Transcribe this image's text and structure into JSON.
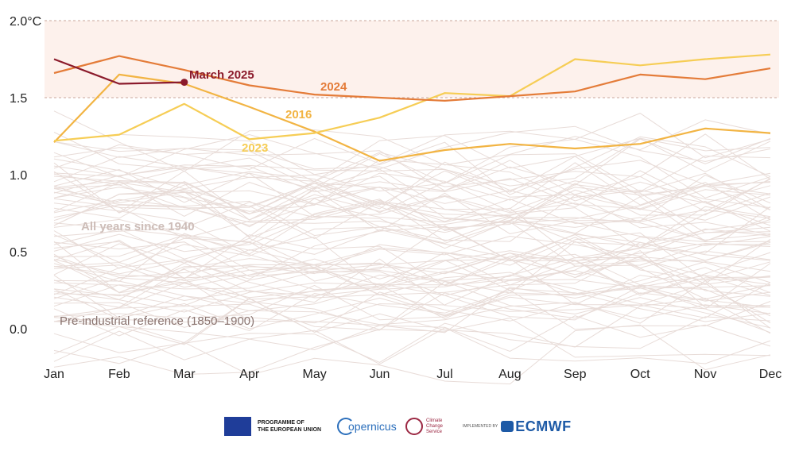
{
  "chart_data": {
    "type": "line",
    "title": "",
    "xlabel": "",
    "ylabel": "",
    "months": [
      "Jan",
      "Feb",
      "Mar",
      "Apr",
      "May",
      "Jun",
      "Jul",
      "Aug",
      "Sep",
      "Oct",
      "Nov",
      "Dec"
    ],
    "ylim": [
      -0.2,
      2.0
    ],
    "yticks": [
      {
        "value": 2.0,
        "label": "2.0°C"
      },
      {
        "value": 1.5,
        "label": "1.5"
      },
      {
        "value": 1.0,
        "label": "1.0"
      },
      {
        "value": 0.5,
        "label": "0.5"
      },
      {
        "value": 0.0,
        "label": "0.0"
      }
    ],
    "band": {
      "from": 1.5,
      "to": 2.0,
      "color": "#fdf1ec",
      "line_color": "#c9a79b"
    },
    "background_label": "All years since 1940",
    "reference_label": "Pre-industrial reference (1850–1900)",
    "background_color": "#e8dcd8",
    "highlight_series": [
      {
        "name": "2016",
        "label": "2016",
        "color": "#f2b443",
        "values": [
          1.21,
          1.65,
          1.59,
          1.44,
          1.28,
          1.09,
          1.16,
          1.2,
          1.17,
          1.2,
          1.3,
          1.27
        ]
      },
      {
        "name": "2023",
        "label": "2023",
        "color": "#f6cd55",
        "values": [
          1.22,
          1.26,
          1.46,
          1.23,
          1.27,
          1.37,
          1.53,
          1.51,
          1.75,
          1.71,
          1.75,
          1.78
        ]
      },
      {
        "name": "2024",
        "label": "2024",
        "color": "#e47c39",
        "values": [
          1.66,
          1.77,
          1.68,
          1.58,
          1.52,
          1.5,
          1.48,
          1.51,
          1.54,
          1.65,
          1.62,
          1.69
        ]
      },
      {
        "name": "March 2025",
        "label": "March 2025",
        "color": "#8b1a2b",
        "values": [
          1.75,
          1.59,
          1.6
        ]
      }
    ]
  },
  "footer": {
    "eu_text_line1": "PROGRAMME OF",
    "eu_text_line2": "THE EUROPEAN UNION",
    "copernicus_text": "opernicus",
    "c3s_text_line1": "Climate",
    "c3s_text_line2": "Change Service",
    "implemented_by": "IMPLEMENTED BY",
    "ecmwf_text": "ECMWF"
  }
}
